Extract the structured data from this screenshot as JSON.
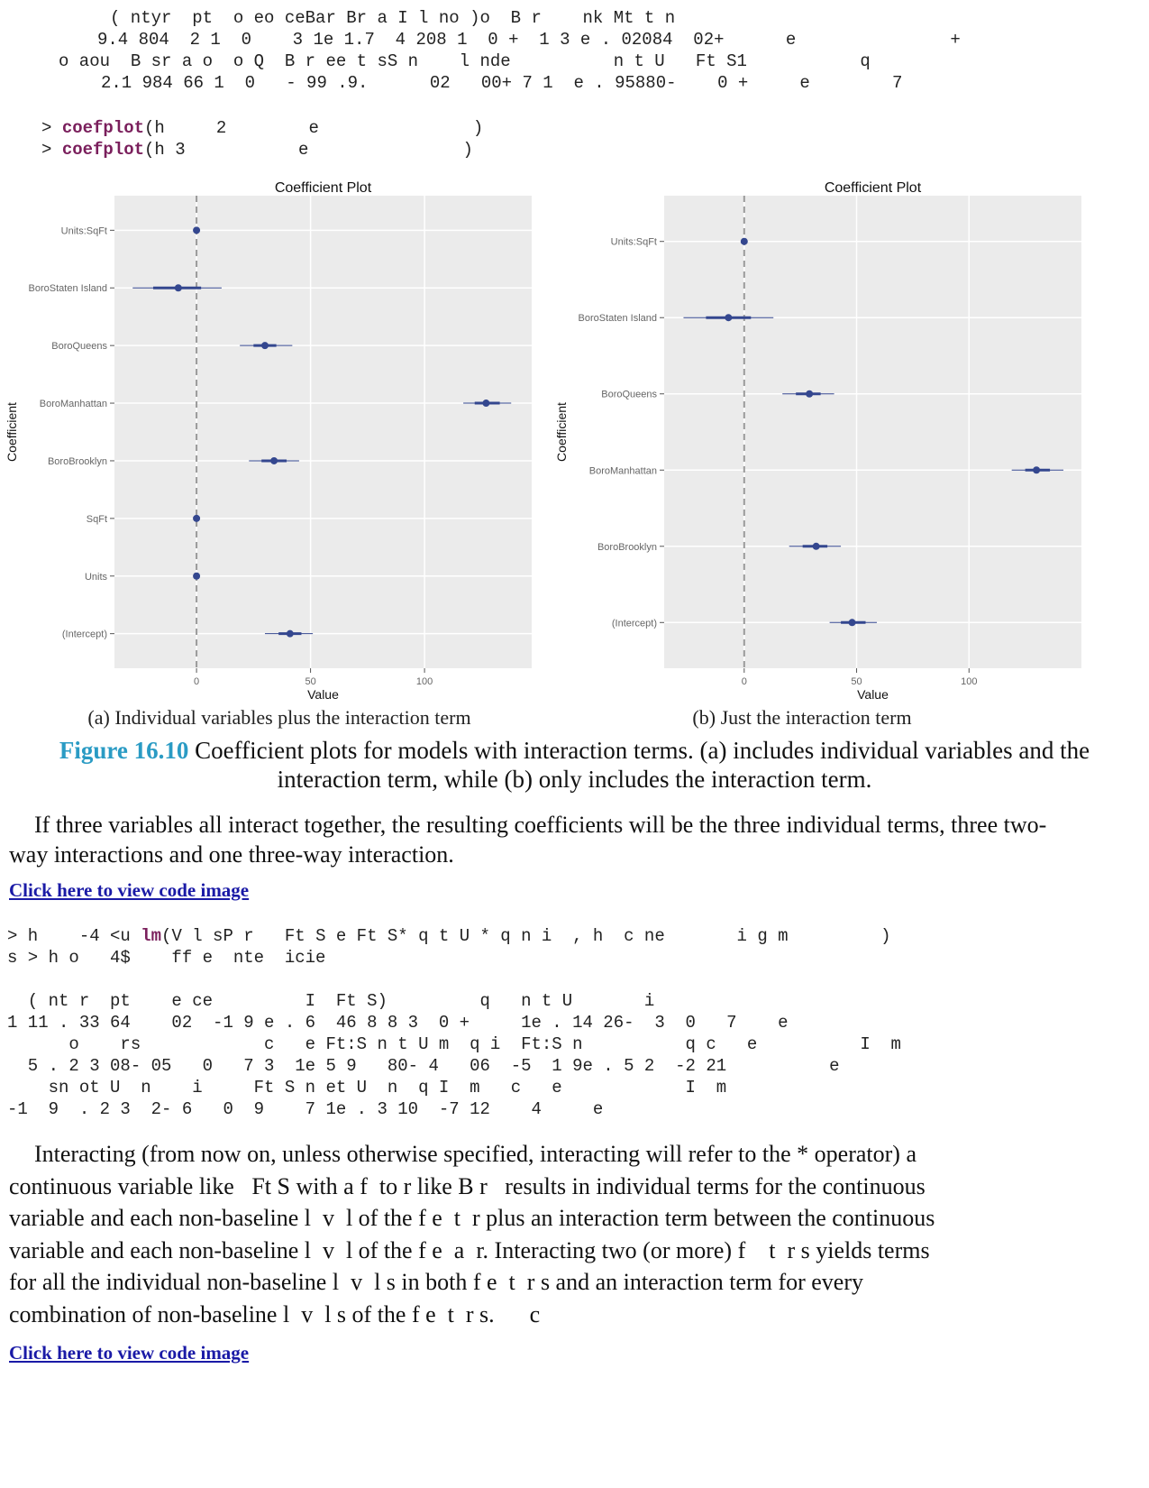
{
  "code_top": [
    "( ntyr  pt  o eo ceBar Br a I l no )o  B r    nk Mt t n",
    "9.4 804  2 1  0    3 1e 1.7  4 208 1  0 +  1 3 e . 02084  02+      e               +",
    "o aou  B sr a o  o Q  B r ee t sS n    l nde          n t U   Ft S1           q",
    "2.1 984 66 1  0   - 99 .9.      02   00+ 7 1  e . 95880-    0 +     e        7"
  ],
  "commands": [
    {
      "prompt": ">",
      "function": "coefplot",
      "args": "(h     2        e               )"
    },
    {
      "prompt": ">",
      "function": "coefplot",
      "args": "(h 3           e               )"
    }
  ],
  "chart_data": [
    {
      "type": "coefficient",
      "title": "Coefficient Plot",
      "x_label": "Value",
      "y_label": "Coefficient",
      "caption": "(a) Individual variables plus the interaction term",
      "categories": [
        "(Intercept)",
        "Units",
        "SqFt",
        "BoroBrooklyn",
        "BoroManhattan",
        "BoroQueens",
        "BoroStaten Island",
        "Units:SqFt"
      ],
      "values": [
        41,
        0,
        0,
        34,
        127,
        30,
        -8,
        0
      ],
      "inner_low": [
        36,
        0,
        0,
        28.5,
        122,
        25,
        -19,
        0
      ],
      "inner_high": [
        46,
        0,
        0,
        39.5,
        133,
        35,
        2,
        0
      ],
      "outer_low": [
        30,
        0,
        0,
        23,
        117,
        19,
        -28,
        0
      ],
      "outer_high": [
        51,
        0,
        0,
        45,
        138,
        42,
        11,
        0
      ],
      "color": "#34478f",
      "xlim": [
        -36,
        147
      ],
      "xticks": [
        0,
        50,
        100
      ],
      "reference_line": 0,
      "grid": true
    },
    {
      "type": "coefficient",
      "title": "Coefficient Plot",
      "x_label": "Value",
      "y_label": "Coefficient",
      "caption": "(b) Just the interaction term",
      "categories": [
        "(Intercept)",
        "BoroBrooklyn",
        "BoroManhattan",
        "BoroQueens",
        "BoroStaten Island",
        "Units:SqFt"
      ],
      "values": [
        48,
        32,
        130,
        29,
        -7,
        0
      ],
      "inner_low": [
        43,
        26,
        125,
        23,
        -17,
        0
      ],
      "inner_high": [
        54,
        37,
        136,
        34,
        3,
        0
      ],
      "outer_low": [
        38,
        20,
        119,
        17,
        -27,
        0
      ],
      "outer_high": [
        59,
        43,
        142,
        40,
        13,
        0
      ],
      "color": "#34478f",
      "xlim": [
        -35.6,
        150
      ],
      "xticks": [
        0,
        50,
        100
      ],
      "reference_line": 0,
      "grid": true
    }
  ],
  "figure_caption": {
    "label": "Figure 16.10",
    "text": "Coefficient plots for models with interaction terms. (a) includes individual variables and the interaction term, while (b) only includes the interaction term."
  },
  "paragraph_1": "If three variables all interact together, the resulting coefficients will be the three individual terms, three two-way interactions and one three-way interaction.",
  "link_1": "Click here to view code image",
  "code_middle": {
    "command": {
      "prompt": "> h    -4 <u ",
      "function": "lm",
      "args": "(V l sP r   Ft S e Ft S* q t U * q n i  , h  c ne       i g m         )"
    },
    "lines": [
      "s > h o   4$    ff e  nte  icie",
      "",
      "  ( nt r  pt    e ce         I  Ft S)         q   n t U       i",
      "1 11 . 33 64    02  -1 9 e . 6  46 8 8 3  0 +     1e . 14 26-  3  0   7    e",
      "      o    rs            c   e Ft:S n t U m  q i  Ft:S n          q c   e          I  m",
      "  5 . 2 3 08- 05   0   7 3  1e 5 9   80- 4   06  -5  1 9e . 5 2  -2 21          e",
      "    sn ot U  n    i     Ft S n et U  n  q I  m   c   e            I  m",
      "-1  9  . 2 3  2- 6   0  9    7 1e . 3 10  -7 12    4     e"
    ]
  },
  "paragraph_2": [
    "Interacting (from now on, unless otherwise specified, interacting will refer to the * operator) a",
    "continuous variable like   Ft S with a f  to r like B r   results in individual terms for the continuous",
    "variable and each non-baseline l  v  l of the f e  t  r plus an interaction term between the continuous",
    "variable and each non-baseline l  v  l of the f e  a  r. Interacting two (or more) f    t  r s yields terms",
    "for all the individual non-baseline l  v  l s in both f e  t  r s and an interaction term for every",
    "combination of non-baseline l  v  l s of the f e  t  r s.      c"
  ],
  "link_2": "Click here to view code image"
}
